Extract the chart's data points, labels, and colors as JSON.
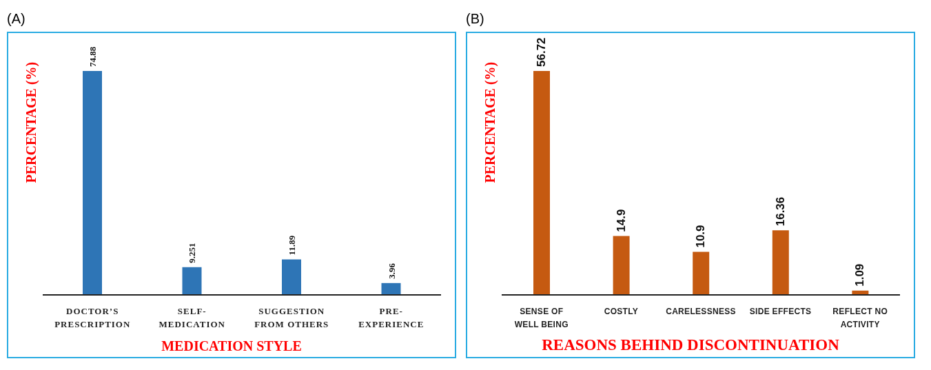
{
  "chart_data": [
    {
      "type": "bar",
      "title": "(A)",
      "xlabel": "MEDICATION STYLE",
      "ylabel": "PERCENTAGE (%)",
      "categories": [
        "DOCTOR’S PRESCRIPTION",
        "SELF-MEDICATION",
        "SUGGESTION FROM OTHERS",
        "PRE-EXPERIENCE"
      ],
      "values": [
        74.88,
        9.251,
        11.89,
        3.96
      ],
      "color": "#2e75b6",
      "data_labels": true,
      "grid": false,
      "legend": false
    },
    {
      "type": "bar",
      "title": "(B)",
      "xlabel": "REASONS BEHIND DISCONTINUATION",
      "ylabel": "PERCENTAGE (%)",
      "categories": [
        "SENSE OF WELL BEING",
        "COSTLY",
        "CARELESSNESS",
        "SIDE EFFECTS",
        "REFLECT NO ACTIVITY"
      ],
      "values": [
        56.72,
        14.9,
        10.9,
        16.36,
        1.09
      ],
      "color": "#c55a11",
      "data_labels": true,
      "grid": false,
      "legend": false
    }
  ]
}
